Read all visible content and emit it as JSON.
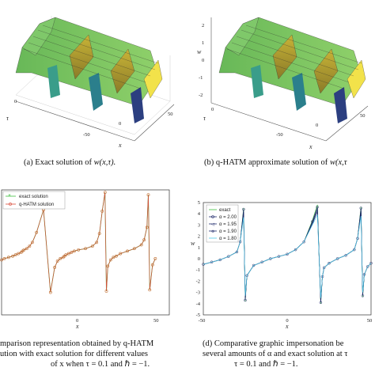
{
  "colors": {
    "surface_green": "#6fbf5a",
    "surface_yellow": "#f0d23a",
    "surface_teal": "#2a8c8c",
    "surface_blue": "#2c4c8c",
    "exact_green": "#3fbf3f",
    "qhatm_red": "#d94b3a",
    "marker_orange": "#c06a2a",
    "alpha_navy": "#1f2a6b",
    "alpha_cyan": "#4fc8e8"
  },
  "panel_a": {
    "caption_prefix": "(a) Exact solution of ",
    "caption_math": "w(x,τ).",
    "axis_tau": "τ",
    "axis_x": "x",
    "ticks_x": [
      "-50",
      "0",
      "50"
    ],
    "ticks_tau": [
      "0"
    ]
  },
  "panel_b": {
    "caption_prefix": "(b) q-HATM approximate solution of ",
    "caption_math": "w(x,τ",
    "axis_w": "w",
    "axis_tau": "τ",
    "axis_x": "x",
    "ticks_w": [
      "2",
      "1",
      "0",
      "-1",
      "-2"
    ],
    "ticks_x": [
      "-50",
      "0",
      "50"
    ],
    "ticks_tau": [
      "0"
    ]
  },
  "panel_c": {
    "legend": [
      "exact solution",
      "q-HATM solution"
    ],
    "xticks": [
      "0",
      "50"
    ],
    "xlabel": "x",
    "caption_lines": [
      "mparison representation obtained by q-HATM",
      "ution  with exact solution for different values",
      "of x when τ = 0.1 and ℏ = −1."
    ]
  },
  "panel_d": {
    "legend": [
      "exact",
      "α = 2.00",
      "α = 1.95",
      "α = 1.90",
      "α = 1.80"
    ],
    "yticks": [
      "5",
      "4",
      "3",
      "2",
      "1",
      "0",
      "-1",
      "-2",
      "-3",
      "-4",
      "-5"
    ],
    "xticks": [
      "-50",
      "0",
      "50"
    ],
    "xlabel": "x",
    "ylabel": "w",
    "caption_lines": [
      "(d) Comparative graphic impersonation be",
      "several amounts of α and exact solution at τ",
      "τ = 0.1 and ℏ = −1."
    ]
  },
  "chart_data": [
    {
      "type": "line",
      "panel": "c",
      "xlabel": "x",
      "xlim": [
        -60,
        60
      ],
      "series": [
        {
          "name": "exact solution",
          "x": [
            -60,
            -58,
            -55,
            -52,
            -50,
            -48,
            -46,
            -45,
            -44,
            -42,
            -40,
            -38,
            -35,
            -30,
            -25,
            -22,
            -20,
            -18,
            -16,
            -15,
            -14,
            -12,
            -10,
            -8,
            -5,
            0,
            5,
            8,
            10,
            12,
            14,
            15,
            16,
            18,
            20,
            22,
            25,
            30,
            35,
            40,
            42,
            44,
            45,
            46,
            48,
            50
          ],
          "y": [
            -0.6,
            -0.5,
            -0.4,
            -0.3,
            -0.2,
            -0.1,
            0.0,
            0.1,
            0.2,
            0.3,
            0.5,
            0.8,
            1.6,
            3.4,
            -3.2,
            -1.2,
            -0.7,
            -0.5,
            -0.4,
            -0.3,
            -0.2,
            -0.1,
            0.0,
            0.1,
            0.2,
            0.3,
            0.5,
            0.8,
            1.5,
            3.3,
            4.8,
            -3.1,
            -1.1,
            -0.6,
            -0.4,
            -0.3,
            -0.1,
            0.1,
            0.3,
            0.6,
            1.0,
            2.0,
            4.6,
            -3.0,
            -1.0,
            -0.5
          ]
        },
        {
          "name": "q-HATM solution",
          "x": [
            -60,
            -58,
            -55,
            -52,
            -50,
            -48,
            -46,
            -45,
            -44,
            -42,
            -40,
            -38,
            -35,
            -30,
            -25,
            -22,
            -20,
            -18,
            -16,
            -15,
            -14,
            -12,
            -10,
            -8,
            -5,
            0,
            5,
            8,
            10,
            12,
            14,
            15,
            16,
            18,
            20,
            22,
            25,
            30,
            35,
            40,
            42,
            44,
            45,
            46,
            48,
            50
          ],
          "y": [
            -0.6,
            -0.5,
            -0.4,
            -0.3,
            -0.2,
            -0.1,
            0.0,
            0.1,
            0.2,
            0.3,
            0.5,
            0.8,
            1.6,
            3.4,
            -3.2,
            -1.2,
            -0.7,
            -0.5,
            -0.4,
            -0.3,
            -0.2,
            -0.1,
            0.0,
            0.1,
            0.2,
            0.3,
            0.5,
            0.8,
            1.5,
            3.3,
            4.8,
            -3.1,
            -1.1,
            -0.6,
            -0.4,
            -0.3,
            -0.1,
            0.1,
            0.3,
            0.6,
            1.0,
            2.0,
            4.6,
            -3.0,
            -1.0,
            -0.5
          ]
        }
      ]
    },
    {
      "type": "line",
      "panel": "d",
      "xlabel": "x",
      "ylabel": "w",
      "xlim": [
        -50,
        50
      ],
      "ylim": [
        -5,
        5
      ],
      "series": [
        {
          "name": "exact",
          "x": [
            -50,
            -45,
            -40,
            -35,
            -30,
            -28,
            -26,
            -25,
            -24,
            -20,
            -15,
            -10,
            -5,
            0,
            5,
            10,
            15,
            18,
            20,
            21,
            22,
            25,
            30,
            35,
            40,
            42,
            44,
            45,
            46,
            48,
            50
          ],
          "y": [
            -0.5,
            -0.3,
            -0.1,
            0.2,
            0.6,
            1.5,
            4.5,
            -3.8,
            -1.5,
            -0.6,
            -0.3,
            0.0,
            0.2,
            0.4,
            0.8,
            1.5,
            3.4,
            4.8,
            -4.0,
            -1.6,
            -0.8,
            -0.4,
            0.0,
            0.3,
            0.8,
            1.8,
            4.6,
            -3.4,
            -1.4,
            -0.7,
            -0.4
          ]
        },
        {
          "name": "α = 2.00",
          "x": [
            -50,
            -45,
            -40,
            -35,
            -30,
            -28,
            -26,
            -25,
            -24,
            -20,
            -15,
            -10,
            -5,
            0,
            5,
            10,
            15,
            18,
            20,
            21,
            22,
            25,
            30,
            35,
            40,
            42,
            44,
            45,
            46,
            48,
            50
          ],
          "y": [
            -0.5,
            -0.3,
            -0.1,
            0.2,
            0.6,
            1.5,
            4.4,
            -3.7,
            -1.5,
            -0.6,
            -0.3,
            0.0,
            0.2,
            0.4,
            0.8,
            1.5,
            3.3,
            4.6,
            -3.9,
            -1.6,
            -0.8,
            -0.4,
            0.0,
            0.3,
            0.8,
            1.8,
            4.5,
            -3.3,
            -1.4,
            -0.7,
            -0.4
          ]
        },
        {
          "name": "α = 1.95",
          "x": [
            -50,
            -45,
            -40,
            -35,
            -30,
            -28,
            -26,
            -25,
            -24,
            -20,
            -15,
            -10,
            -5,
            0,
            5,
            10,
            15,
            18,
            20,
            21,
            22,
            25,
            30,
            35,
            40,
            42,
            44,
            45,
            46,
            48,
            50
          ],
          "y": [
            -0.5,
            -0.3,
            -0.1,
            0.2,
            0.6,
            1.5,
            4.2,
            -3.6,
            -1.5,
            -0.6,
            -0.3,
            0.0,
            0.2,
            0.4,
            0.8,
            1.5,
            3.2,
            4.4,
            -3.8,
            -1.6,
            -0.8,
            -0.4,
            0.0,
            0.3,
            0.8,
            1.8,
            4.3,
            -3.2,
            -1.4,
            -0.7,
            -0.4
          ]
        },
        {
          "name": "α = 1.90",
          "x": [
            -50,
            -45,
            -40,
            -35,
            -30,
            -28,
            -26,
            -25,
            -24,
            -20,
            -15,
            -10,
            -5,
            0,
            5,
            10,
            15,
            18,
            20,
            21,
            22,
            25,
            30,
            35,
            40,
            42,
            44,
            45,
            46,
            48,
            50
          ],
          "y": [
            -0.5,
            -0.3,
            -0.1,
            0.2,
            0.6,
            1.5,
            4.0,
            -3.5,
            -1.5,
            -0.6,
            -0.3,
            0.0,
            0.2,
            0.4,
            0.8,
            1.5,
            3.1,
            4.2,
            -3.7,
            -1.6,
            -0.8,
            -0.4,
            0.0,
            0.3,
            0.8,
            1.8,
            4.1,
            -3.1,
            -1.4,
            -0.7,
            -0.4
          ]
        },
        {
          "name": "α = 1.80",
          "x": [
            -50,
            -45,
            -40,
            -35,
            -30,
            -28,
            -26,
            -25,
            -24,
            -20,
            -15,
            -10,
            -5,
            0,
            5,
            10,
            15,
            18,
            20,
            21,
            22,
            25,
            30,
            35,
            40,
            42,
            44,
            45,
            46,
            48,
            50
          ],
          "y": [
            -0.5,
            -0.3,
            -0.1,
            0.2,
            0.6,
            1.5,
            3.7,
            -3.3,
            -1.5,
            -0.6,
            -0.3,
            0.0,
            0.2,
            0.4,
            0.8,
            1.5,
            3.0,
            3.9,
            -3.5,
            -1.6,
            -0.8,
            -0.4,
            0.0,
            0.3,
            0.8,
            1.8,
            3.8,
            -3.0,
            -1.4,
            -0.7,
            -0.4
          ]
        }
      ]
    }
  ]
}
